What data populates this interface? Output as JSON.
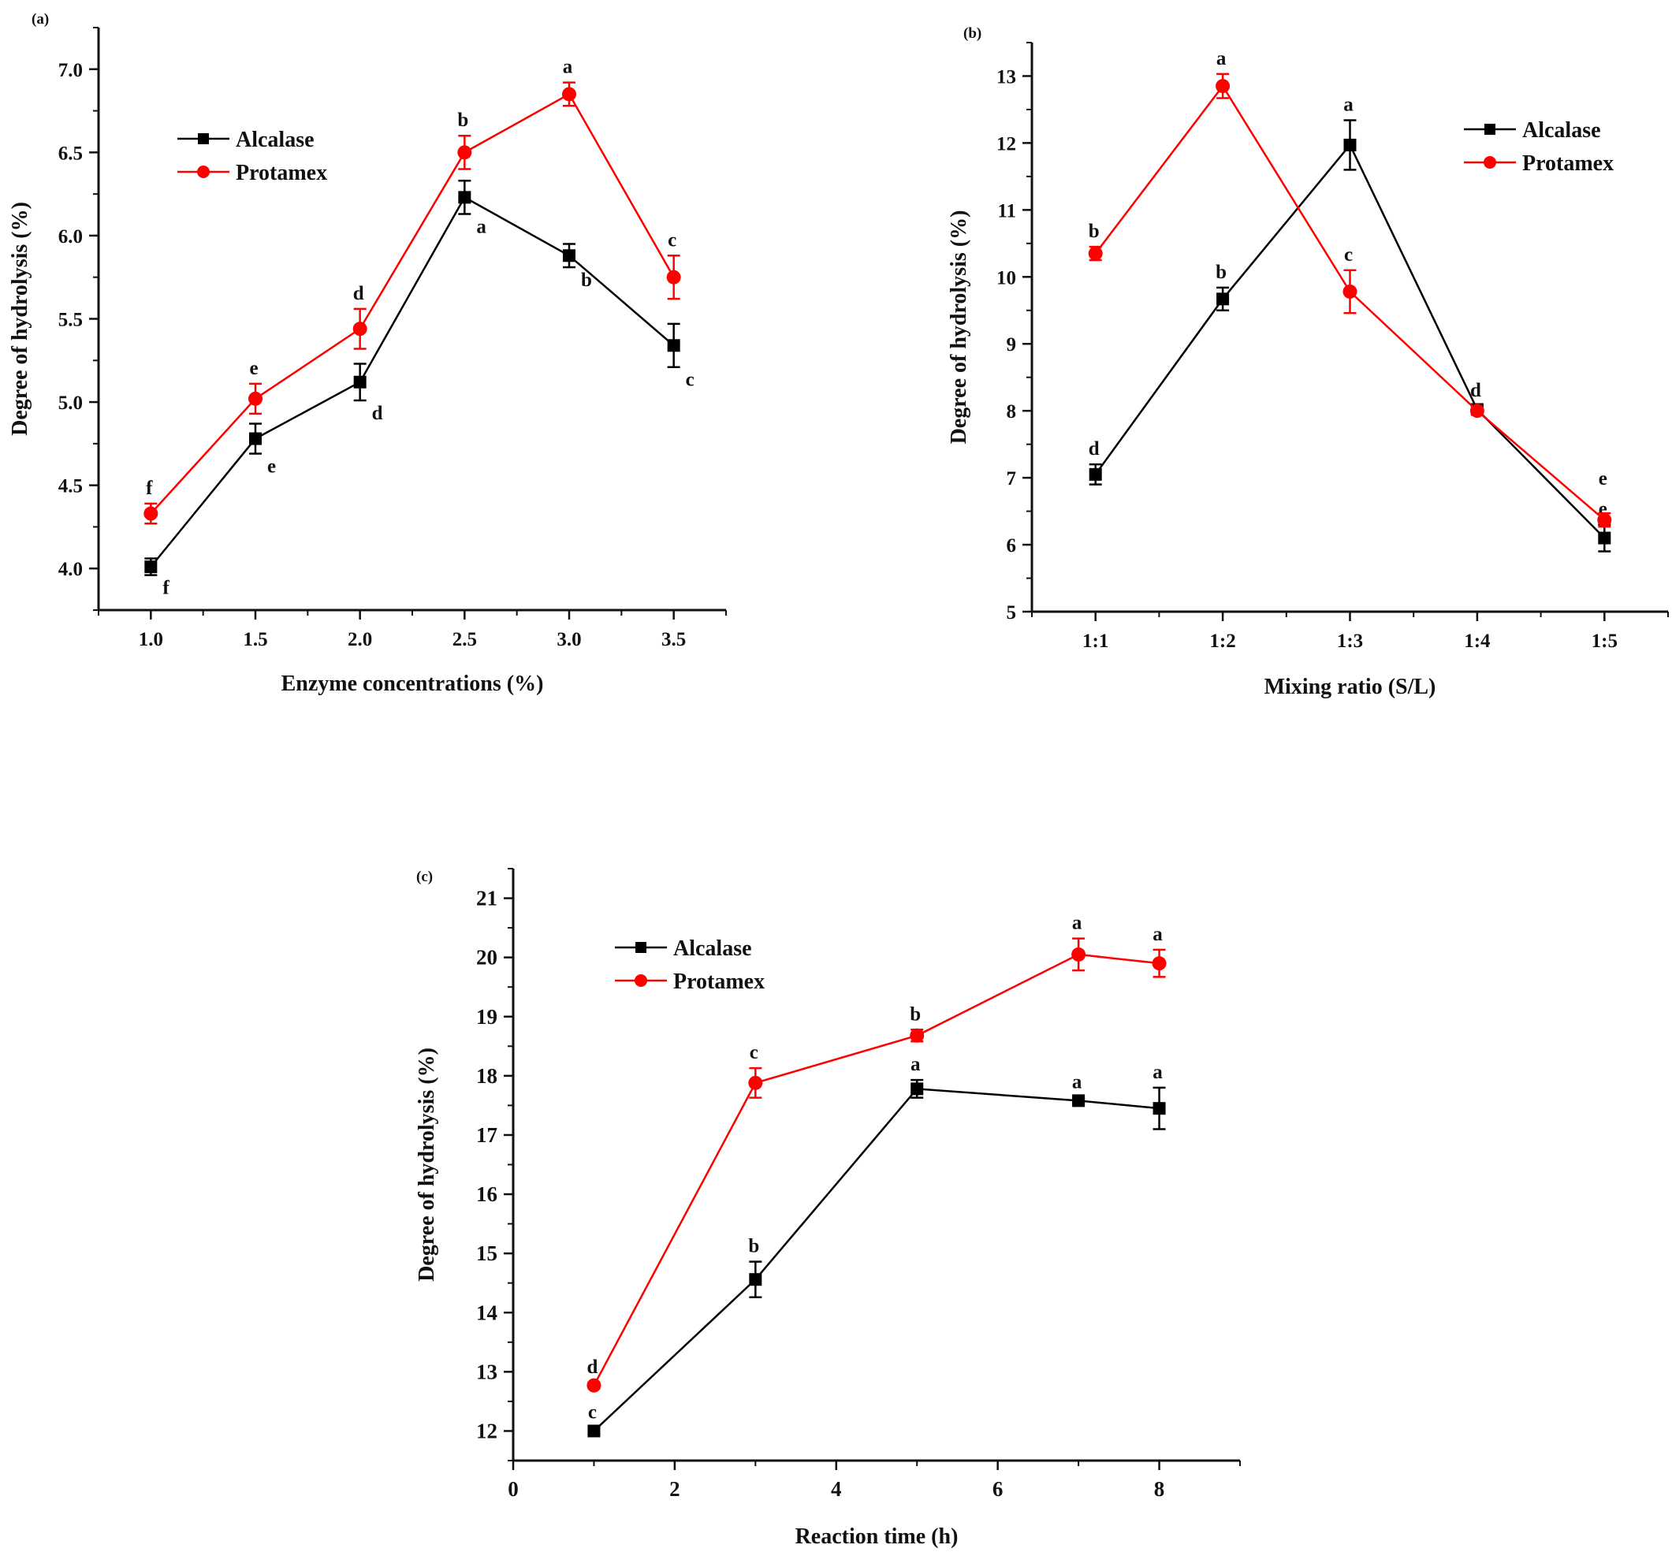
{
  "chart_data": [
    {
      "panel": "(a)",
      "type": "line",
      "title": "",
      "xlabel": "Enzyme concentrations (%)",
      "ylabel": "Degree of hydrolysis (%)",
      "xlim": [
        0.75,
        3.75
      ],
      "ylim": [
        3.75,
        7.25
      ],
      "xticks": [
        1.0,
        1.5,
        2.0,
        2.5,
        3.0,
        3.5
      ],
      "xtick_labels": [
        "1.0",
        "1.5",
        "2.0",
        "2.5",
        "3.0",
        "3.5"
      ],
      "yticks": [
        4.0,
        4.5,
        5.0,
        5.5,
        6.0,
        6.5,
        7.0
      ],
      "ytick_labels": [
        "4.0",
        "4.5",
        "5.0",
        "5.5",
        "6.0",
        "6.5",
        "7.0"
      ],
      "x": [
        1.0,
        1.5,
        2.0,
        2.5,
        3.0,
        3.5
      ],
      "legend": "top-left",
      "series": [
        {
          "name": "Alcalase",
          "color": "#000000",
          "marker": "square",
          "values": [
            4.01,
            4.78,
            5.12,
            6.23,
            5.88,
            5.34
          ],
          "errors": [
            0.05,
            0.09,
            0.11,
            0.1,
            0.07,
            0.13
          ],
          "letters": [
            "f",
            "e",
            "d",
            "a",
            "b",
            "c"
          ],
          "letter_pos": "below-right"
        },
        {
          "name": "Protamex",
          "color": "#ff0000",
          "marker": "circle",
          "values": [
            4.33,
            5.02,
            5.44,
            6.5,
            6.85,
            5.75
          ],
          "errors": [
            0.06,
            0.09,
            0.12,
            0.1,
            0.07,
            0.13
          ],
          "letters": [
            "f",
            "e",
            "d",
            "b",
            "a",
            "c"
          ],
          "letter_pos": "above"
        }
      ]
    },
    {
      "panel": "(b)",
      "type": "line",
      "title": "",
      "xlabel": "Mixing ratio (S/L)",
      "ylabel": "Degree of hydrolysis (%)",
      "xlim": [
        0.5,
        5.5
      ],
      "ylim": [
        5,
        13.5
      ],
      "xticks": [
        1,
        2,
        3,
        4,
        5
      ],
      "xtick_labels": [
        "1:1",
        "1:2",
        "1:3",
        "1:4",
        "1:5"
      ],
      "yticks": [
        5,
        6,
        7,
        8,
        9,
        10,
        11,
        12,
        13
      ],
      "ytick_labels": [
        "5",
        "6",
        "7",
        "8",
        "9",
        "10",
        "11",
        "12",
        "13"
      ],
      "x": [
        1,
        2,
        3,
        4,
        5
      ],
      "legend": "top-right",
      "series": [
        {
          "name": "Alcalase",
          "color": "#000000",
          "marker": "square",
          "values": [
            7.05,
            9.67,
            11.97,
            8.02,
            6.1
          ],
          "errors": [
            0.15,
            0.17,
            0.37,
            0.05,
            0.2
          ],
          "letters": [
            "d",
            "b",
            "a",
            "d",
            "e"
          ],
          "letter_pos": "above"
        },
        {
          "name": "Protamex",
          "color": "#ff0000",
          "marker": "circle",
          "values": [
            10.35,
            12.85,
            9.78,
            8.0,
            6.37
          ],
          "errors": [
            0.1,
            0.18,
            0.32,
            0.05,
            0.1
          ],
          "letters": [
            "b",
            "a",
            "c",
            "",
            "e"
          ],
          "letter_pos": "above"
        }
      ]
    },
    {
      "panel": "(c)",
      "type": "line",
      "title": "",
      "xlabel": "Reaction time (h)",
      "ylabel": "Degree of hydrolysis (%)",
      "xlim": [
        0,
        9
      ],
      "ylim": [
        11.5,
        21.5
      ],
      "xticks": [
        0,
        2,
        4,
        6,
        8
      ],
      "xtick_labels": [
        "0",
        "2",
        "4",
        "6",
        "8"
      ],
      "yticks": [
        12,
        13,
        14,
        15,
        16,
        17,
        18,
        19,
        20,
        21
      ],
      "ytick_labels": [
        "12",
        "13",
        "14",
        "15",
        "16",
        "17",
        "18",
        "19",
        "20",
        "21"
      ],
      "x": [
        1,
        3,
        5,
        7,
        8
      ],
      "legend": "top-left",
      "series": [
        {
          "name": "Alcalase",
          "color": "#000000",
          "marker": "square",
          "values": [
            12.0,
            14.56,
            17.78,
            17.58,
            17.45
          ],
          "errors": [
            0.05,
            0.3,
            0.15,
            0.05,
            0.35
          ],
          "letters": [
            "c",
            "b",
            "a",
            "a",
            "a"
          ],
          "letter_pos": "above"
        },
        {
          "name": "Protamex",
          "color": "#ff0000",
          "marker": "circle",
          "values": [
            12.77,
            17.88,
            18.68,
            20.05,
            19.9
          ],
          "errors": [
            0.05,
            0.25,
            0.1,
            0.27,
            0.23
          ],
          "letters": [
            "d",
            "c",
            "b",
            "a",
            "a"
          ],
          "letter_pos": "above"
        }
      ]
    }
  ]
}
